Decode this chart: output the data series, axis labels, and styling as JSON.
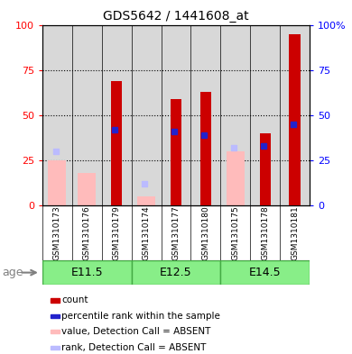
{
  "title": "GDS5642 / 1441608_at",
  "samples": [
    "GSM1310173",
    "GSM1310176",
    "GSM1310179",
    "GSM1310174",
    "GSM1310177",
    "GSM1310180",
    "GSM1310175",
    "GSM1310178",
    "GSM1310181"
  ],
  "age_groups": [
    {
      "label": "E11.5",
      "start": 0,
      "end": 3
    },
    {
      "label": "E12.5",
      "start": 3,
      "end": 6
    },
    {
      "label": "E14.5",
      "start": 6,
      "end": 9
    }
  ],
  "count_values": [
    0,
    0,
    69,
    0,
    59,
    63,
    0,
    40,
    95
  ],
  "rank_values": [
    0,
    0,
    42,
    0,
    41,
    39,
    0,
    33,
    45
  ],
  "absent_value": [
    25,
    18,
    0,
    5,
    0,
    0,
    30,
    0,
    0
  ],
  "absent_rank": [
    30,
    0,
    0,
    12,
    0,
    0,
    32,
    0,
    0
  ],
  "count_color": "#cc0000",
  "rank_color": "#2222cc",
  "absent_value_color": "#ffbbbb",
  "absent_rank_color": "#bbbbff",
  "plot_bg": "#ffffff",
  "sample_bg": "#d8d8d8",
  "age_band_color": "#88ee88",
  "age_band_border": "#44aa44",
  "yticks": [
    0,
    25,
    50,
    75,
    100
  ],
  "left_tick_labels": [
    "0",
    "25",
    "50",
    "75",
    "100"
  ],
  "right_tick_labels": [
    "0",
    "25",
    "50",
    "75",
    "100%"
  ],
  "legend_items": [
    {
      "color": "#cc0000",
      "label": "count"
    },
    {
      "color": "#2222cc",
      "label": "percentile rank within the sample"
    },
    {
      "color": "#ffbbbb",
      "label": "value, Detection Call = ABSENT"
    },
    {
      "color": "#bbbbff",
      "label": "rank, Detection Call = ABSENT"
    }
  ],
  "age_label": "age"
}
